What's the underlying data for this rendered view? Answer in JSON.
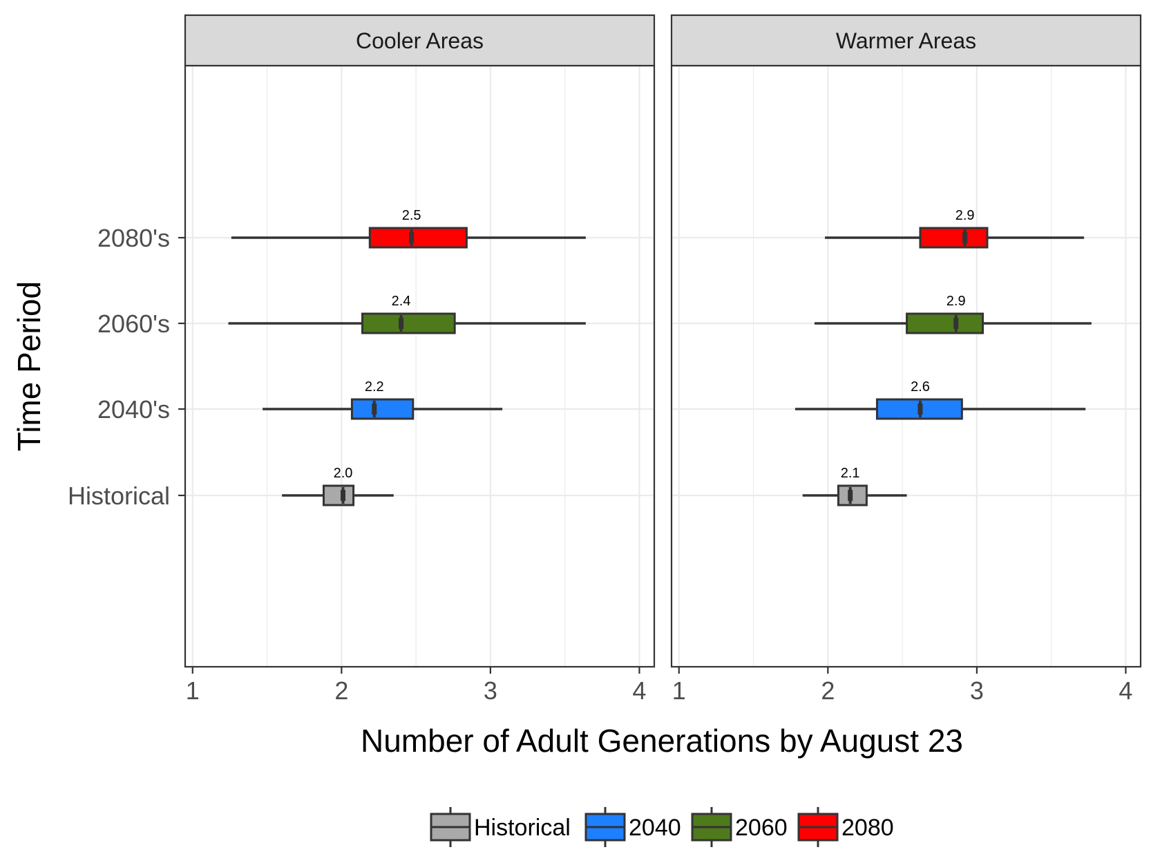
{
  "chart_data": {
    "type": "boxplot",
    "xlabel": "Number of Adult Generations by August 23",
    "ylabel": "Time Period",
    "xlim": [
      0.95,
      4.1
    ],
    "xticks": [
      1,
      2,
      3,
      4
    ],
    "grid": true,
    "legend_position": "bottom",
    "categories": [
      "Historical",
      "2040's",
      "2060's",
      "2080's"
    ],
    "legend": [
      {
        "name": "Historical",
        "color": "#A9A9A9"
      },
      {
        "name": "2040",
        "color": "#1E7FFF"
      },
      {
        "name": "2060",
        "color": "#4E7A1C"
      },
      {
        "name": "2080",
        "color": "#FF0000"
      }
    ],
    "panels": [
      {
        "title": "Cooler Areas",
        "boxes": [
          {
            "category": "Historical",
            "whisker_low": 1.6,
            "q1": 1.88,
            "median": 2.01,
            "q3": 2.08,
            "whisker_high": 2.35,
            "label": "2.0"
          },
          {
            "category": "2040's",
            "whisker_low": 1.47,
            "q1": 2.07,
            "median": 2.22,
            "q3": 2.48,
            "whisker_high": 3.08,
            "label": "2.2"
          },
          {
            "category": "2060's",
            "whisker_low": 1.24,
            "q1": 2.14,
            "median": 2.4,
            "q3": 2.76,
            "whisker_high": 3.64,
            "label": "2.4"
          },
          {
            "category": "2080's",
            "whisker_low": 1.26,
            "q1": 2.19,
            "median": 2.47,
            "q3": 2.84,
            "whisker_high": 3.64,
            "label": "2.5"
          }
        ]
      },
      {
        "title": "Warmer Areas",
        "boxes": [
          {
            "category": "Historical",
            "whisker_low": 1.83,
            "q1": 2.07,
            "median": 2.15,
            "q3": 2.26,
            "whisker_high": 2.53,
            "label": "2.1"
          },
          {
            "category": "2040's",
            "whisker_low": 1.78,
            "q1": 2.33,
            "median": 2.62,
            "q3": 2.9,
            "whisker_high": 3.73,
            "label": "2.6"
          },
          {
            "category": "2060's",
            "whisker_low": 1.91,
            "q1": 2.53,
            "median": 2.86,
            "q3": 3.04,
            "whisker_high": 3.77,
            "label": "2.9"
          },
          {
            "category": "2080's",
            "whisker_low": 1.98,
            "q1": 2.62,
            "median": 2.92,
            "q3": 3.07,
            "whisker_high": 3.72,
            "label": "2.9"
          }
        ]
      }
    ]
  }
}
